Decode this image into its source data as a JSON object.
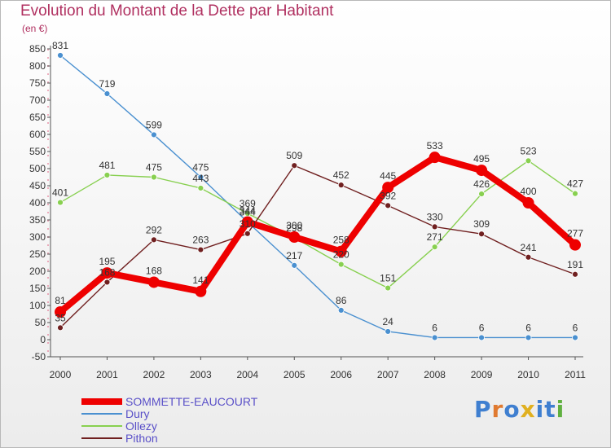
{
  "header": {
    "title": "Evolution du Montant de la Dette par Habitant",
    "unit": "(en €)"
  },
  "logo": {
    "text": "Proxiti",
    "colors": [
      "#3f7fd0",
      "#e07a30",
      "#3f7fd0",
      "#e0b020",
      "#3f7fd0",
      "#3f7fd0",
      "#60b040"
    ]
  },
  "chart_data": {
    "type": "line",
    "title": "Evolution du Montant de la Dette par Habitant",
    "ylabel": "(en €)",
    "xlabel": "",
    "x": [
      "2000",
      "2001",
      "2002",
      "2003",
      "2004",
      "2005",
      "2006",
      "2007",
      "2008",
      "2009",
      "2010",
      "2011"
    ],
    "ylim": [
      -50,
      850
    ],
    "yticks": [
      -50,
      0,
      50,
      100,
      150,
      200,
      250,
      300,
      350,
      400,
      450,
      500,
      550,
      600,
      650,
      700,
      750,
      800,
      850
    ],
    "grid": false,
    "legend_position": "bottom-left",
    "series": [
      {
        "name": "SOMMETTE-EAUCOURT",
        "color": "#ee0000",
        "emphasis": true,
        "values": [
          81,
          195,
          168,
          141,
          344,
          300,
          258,
          445,
          533,
          495,
          400,
          277
        ]
      },
      {
        "name": "Dury",
        "color": "#4a90d0",
        "values": [
          831,
          719,
          599,
          475,
          344,
          217,
          86,
          24,
          6,
          6,
          6,
          6
        ]
      },
      {
        "name": "Ollezy",
        "color": "#88d050",
        "values": [
          401,
          481,
          475,
          443,
          369,
          298,
          220,
          151,
          271,
          426,
          523,
          427
        ]
      },
      {
        "name": "Pithon",
        "color": "#702020",
        "values": [
          35,
          168,
          292,
          263,
          310,
          509,
          452,
          392,
          330,
          309,
          241,
          191
        ]
      }
    ]
  }
}
